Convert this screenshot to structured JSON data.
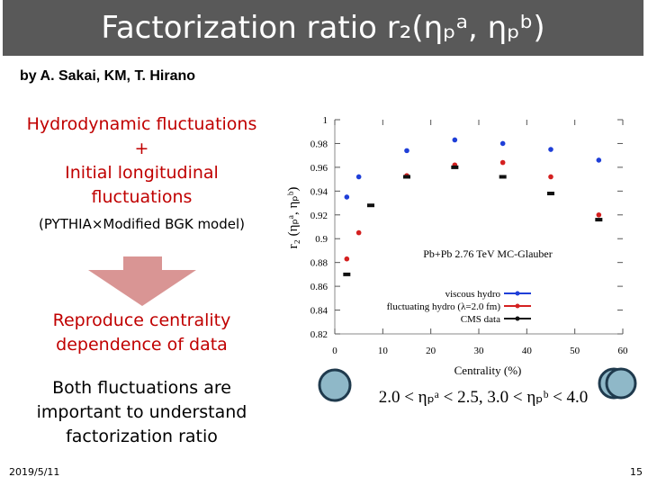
{
  "slide": {
    "title": "Factorization ratio r₂(ηₚᵃ, ηₚᵇ)",
    "authors": "by A. Sakai, KM, T. Hirano",
    "model_lines": [
      "Hydrodynamic fluctuations",
      "+",
      "Initial longitudinal",
      "fluctuations"
    ],
    "model_note": "(PYTHIA×Modified BGK model)",
    "result_lines": [
      "Reproduce centrality",
      "dependence of data"
    ],
    "conclusion_lines": [
      "Both fluctuations are",
      "important to understand",
      "factorization ratio"
    ],
    "rapidity_range": "2.0 < ηₚᵃ < 2.5, 3.0 < ηₚᵇ < 4.0",
    "date": "2019/5/11",
    "page": "15"
  },
  "chart_data": {
    "type": "scatter",
    "annotation": "Pb+Pb 2.76 TeV MC-Glauber",
    "x_label": "Centrality (%)",
    "y_label": "r₂ (ηₚᵃ, ηₚᵇ)",
    "xlim": [
      0,
      60
    ],
    "xticks": [
      0,
      10,
      20,
      30,
      40,
      50,
      60
    ],
    "ylim": [
      0.82,
      1
    ],
    "yticks": [
      0.82,
      0.84,
      0.86,
      0.88,
      0.9,
      0.92,
      0.94,
      0.96,
      0.98,
      1
    ],
    "legend": "lower right",
    "series": [
      {
        "name": "viscous hydro",
        "color": "#1f3fd8",
        "x": [
          2.5,
          5,
          15,
          25,
          35,
          45,
          55
        ],
        "values": [
          0.935,
          0.952,
          0.974,
          0.983,
          0.98,
          0.975,
          0.966
        ]
      },
      {
        "name": "fluctuating hydro (λ=2.0 fm)",
        "color": "#d42020",
        "x": [
          2.5,
          5,
          15,
          25,
          35,
          45,
          55
        ],
        "values": [
          0.883,
          0.905,
          0.953,
          0.962,
          0.964,
          0.952,
          0.92
        ]
      },
      {
        "name": "CMS data",
        "color": "#111111",
        "x": [
          2.5,
          7.5,
          15,
          25,
          35,
          45,
          55
        ],
        "values": [
          0.87,
          0.928,
          0.952,
          0.96,
          0.952,
          0.938,
          0.916
        ]
      }
    ]
  }
}
